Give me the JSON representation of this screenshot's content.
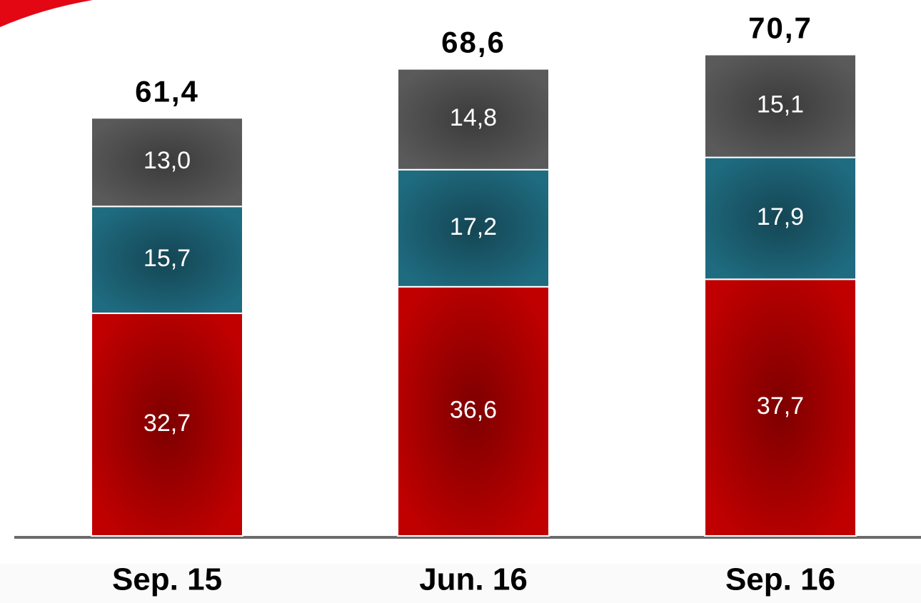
{
  "chart_data": {
    "type": "stacked_bar",
    "categories": [
      "Sep. 15",
      "Jun. 16",
      "Sep. 16"
    ],
    "series": [
      {
        "color": "#c00000",
        "values": [
          32.7,
          36.6,
          37.7
        ],
        "value_labels": [
          "32,7",
          "36,6",
          "37,7"
        ]
      },
      {
        "color": "#1f6b80",
        "values": [
          15.7,
          17.2,
          17.9
        ],
        "value_labels": [
          "15,7",
          "17,2",
          "17,9"
        ]
      },
      {
        "color": "#5a5a5a",
        "values": [
          13.0,
          14.8,
          15.1
        ],
        "value_labels": [
          "13,0",
          "14,8",
          "15,1"
        ]
      }
    ],
    "totals": [
      61.4,
      68.6,
      70.7
    ],
    "total_labels": [
      "61,4",
      "68,6",
      "70,7"
    ]
  }
}
